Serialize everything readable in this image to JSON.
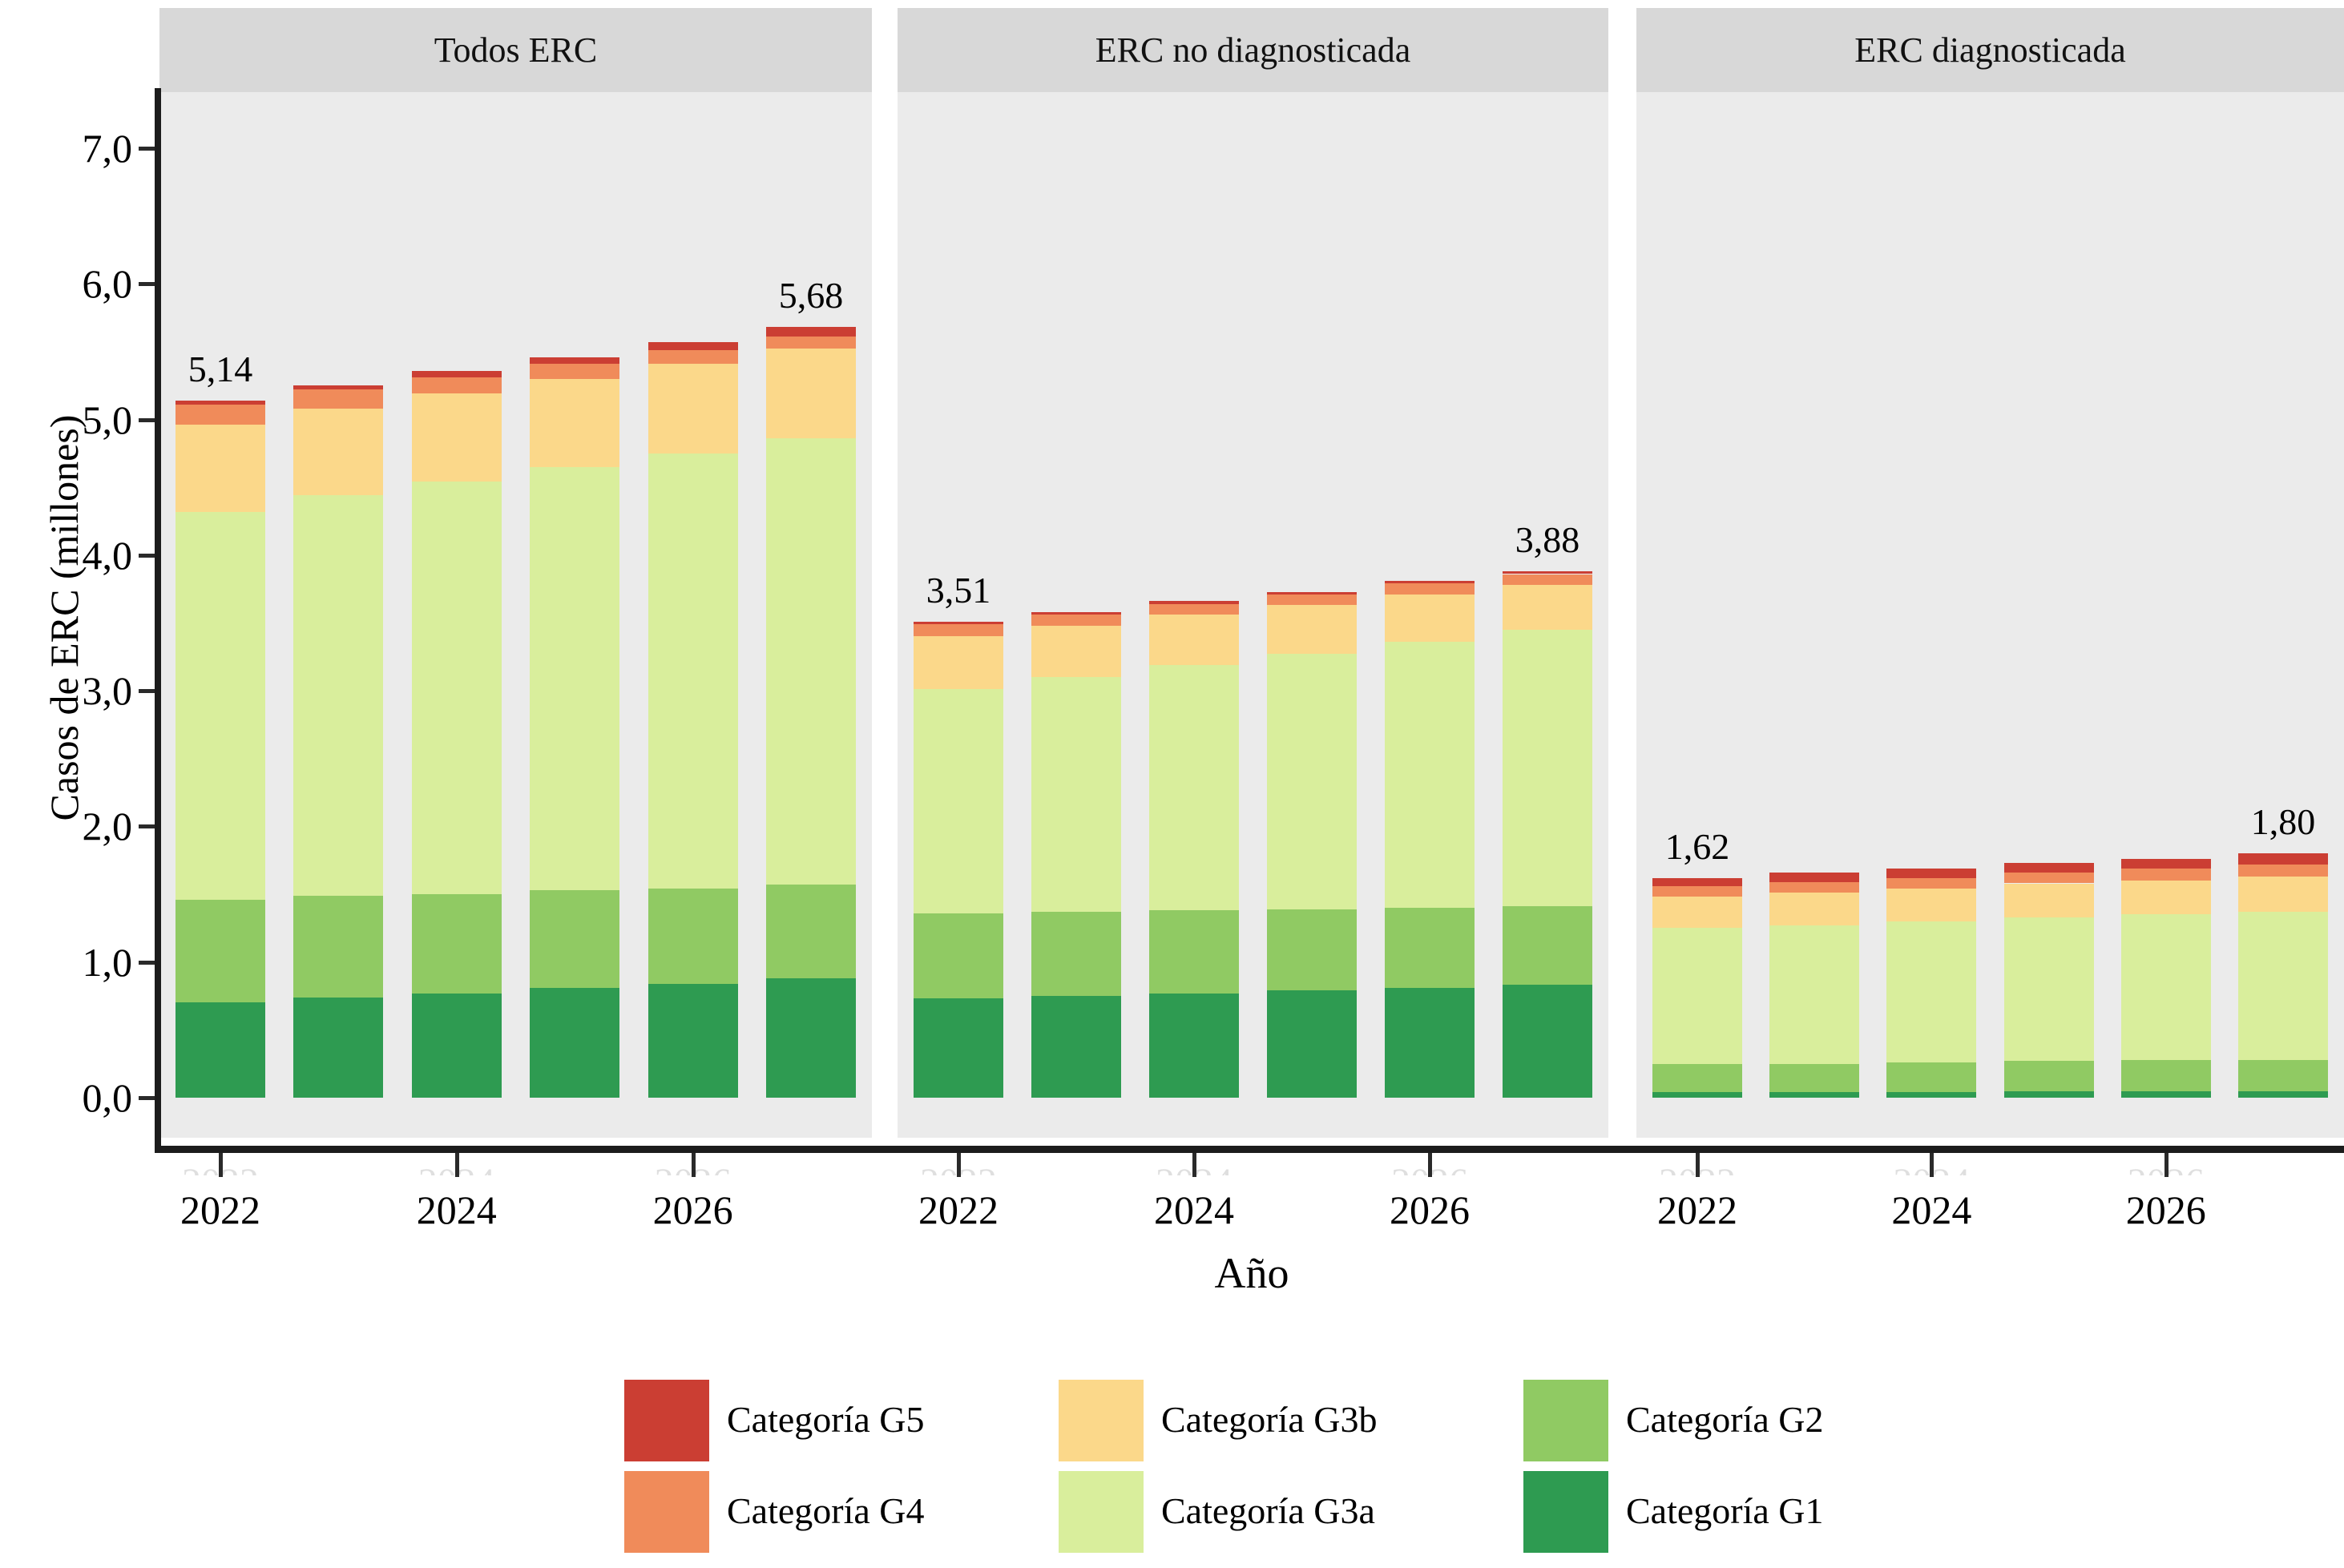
{
  "figure": {
    "y_axis": {
      "label": "Casos de ERC (millones)",
      "ticks": [
        "7,0",
        "6,0",
        "5,0",
        "4,0",
        "3,0",
        "2,0",
        "1,0",
        "0,0"
      ],
      "tick_values": [
        7,
        6,
        5,
        4,
        3,
        2,
        1,
        0
      ],
      "range": [
        0,
        7.4
      ]
    },
    "x_axis": {
      "label": "Año",
      "shown_tick_labels": [
        "2022",
        "2024",
        "2026"
      ],
      "shown_tick_indices": [
        0,
        2,
        4
      ]
    },
    "palette": {
      "G5": "#cb3e33",
      "G4": "#f08b5a",
      "G3b": "#fbd88a",
      "G3a": "#d9ee9c",
      "G2": "#90ca63",
      "G1": "#2e9b51"
    },
    "background": {
      "page": "#ffffff",
      "panel": "#ebebeb",
      "header": "#d8d8d8"
    }
  },
  "chart_data": [
    {
      "type": "bar",
      "stacked": true,
      "title": "Todos ERC",
      "categories": [
        "2022",
        "2023",
        "2024",
        "2025",
        "2026",
        "2027"
      ],
      "series": [
        {
          "name": "Categoría G1",
          "key": "G1",
          "values": [
            0.7,
            0.74,
            0.77,
            0.81,
            0.84,
            0.88
          ]
        },
        {
          "name": "Categoría G2",
          "key": "G2",
          "values": [
            0.76,
            0.75,
            0.73,
            0.72,
            0.7,
            0.69
          ]
        },
        {
          "name": "Categoría G3a",
          "key": "G3a",
          "values": [
            2.86,
            2.95,
            3.04,
            3.12,
            3.21,
            3.29
          ]
        },
        {
          "name": "Categoría G3b",
          "key": "G3b",
          "values": [
            0.64,
            0.64,
            0.65,
            0.65,
            0.66,
            0.66
          ]
        },
        {
          "name": "Categoría G4",
          "key": "G4",
          "values": [
            0.15,
            0.14,
            0.12,
            0.11,
            0.1,
            0.09
          ]
        },
        {
          "name": "Categoría G5",
          "key": "G5",
          "values": [
            0.03,
            0.03,
            0.05,
            0.05,
            0.06,
            0.07
          ]
        }
      ],
      "totals": [
        5.14,
        5.25,
        5.36,
        5.46,
        5.57,
        5.68
      ],
      "annotations": [
        {
          "index": 0,
          "text": "5,14"
        },
        {
          "index": 5,
          "text": "5,68"
        }
      ]
    },
    {
      "type": "bar",
      "stacked": true,
      "title": "ERC no diagnosticada",
      "categories": [
        "2022",
        "2023",
        "2024",
        "2025",
        "2026",
        "2027"
      ],
      "series": [
        {
          "name": "Categoría G1",
          "key": "G1",
          "values": [
            0.73,
            0.75,
            0.77,
            0.79,
            0.81,
            0.83
          ]
        },
        {
          "name": "Categoría G2",
          "key": "G2",
          "values": [
            0.63,
            0.62,
            0.61,
            0.6,
            0.59,
            0.58
          ]
        },
        {
          "name": "Categoría G3a",
          "key": "G3a",
          "values": [
            1.65,
            1.73,
            1.81,
            1.88,
            1.96,
            2.04
          ]
        },
        {
          "name": "Categoría G3b",
          "key": "G3b",
          "values": [
            0.39,
            0.38,
            0.37,
            0.36,
            0.35,
            0.33
          ]
        },
        {
          "name": "Categoría G4",
          "key": "G4",
          "values": [
            0.09,
            0.08,
            0.08,
            0.08,
            0.08,
            0.08
          ]
        },
        {
          "name": "Categoría G5",
          "key": "G5",
          "values": [
            0.02,
            0.02,
            0.02,
            0.02,
            0.02,
            0.02
          ]
        }
      ],
      "totals": [
        3.51,
        3.58,
        3.66,
        3.73,
        3.81,
        3.88
      ],
      "annotations": [
        {
          "index": 0,
          "text": "3,51"
        },
        {
          "index": 5,
          "text": "3,88"
        }
      ]
    },
    {
      "type": "bar",
      "stacked": true,
      "title": "ERC diagnosticada",
      "categories": [
        "2022",
        "2023",
        "2024",
        "2025",
        "2026",
        "2027"
      ],
      "series": [
        {
          "name": "Categoría G1",
          "key": "G1",
          "values": [
            0.04,
            0.04,
            0.04,
            0.05,
            0.05,
            0.05
          ]
        },
        {
          "name": "Categoría G2",
          "key": "G2",
          "values": [
            0.21,
            0.21,
            0.22,
            0.22,
            0.23,
            0.23
          ]
        },
        {
          "name": "Categoría G3a",
          "key": "G3a",
          "values": [
            1.0,
            1.02,
            1.04,
            1.06,
            1.07,
            1.09
          ]
        },
        {
          "name": "Categoría G3b",
          "key": "G3b",
          "values": [
            0.23,
            0.24,
            0.24,
            0.25,
            0.25,
            0.26
          ]
        },
        {
          "name": "Categoría G4",
          "key": "G4",
          "values": [
            0.08,
            0.08,
            0.08,
            0.08,
            0.09,
            0.09
          ]
        },
        {
          "name": "Categoría G5",
          "key": "G5",
          "values": [
            0.06,
            0.07,
            0.07,
            0.07,
            0.07,
            0.08
          ]
        }
      ],
      "totals": [
        1.62,
        1.66,
        1.69,
        1.73,
        1.76,
        1.8
      ],
      "annotations": [
        {
          "index": 0,
          "text": "1,62"
        },
        {
          "index": 5,
          "text": "1,80"
        }
      ]
    }
  ],
  "legend": {
    "items": [
      {
        "label": "Categoría G5",
        "color_key": "G5"
      },
      {
        "label": "Categoría G4",
        "color_key": "G4"
      },
      {
        "label": "Categoría G3b",
        "color_key": "G3b"
      },
      {
        "label": "Categoría G3a",
        "color_key": "G3a"
      },
      {
        "label": "Categoría G2",
        "color_key": "G2"
      },
      {
        "label": "Categoría G1",
        "color_key": "G1"
      }
    ]
  }
}
